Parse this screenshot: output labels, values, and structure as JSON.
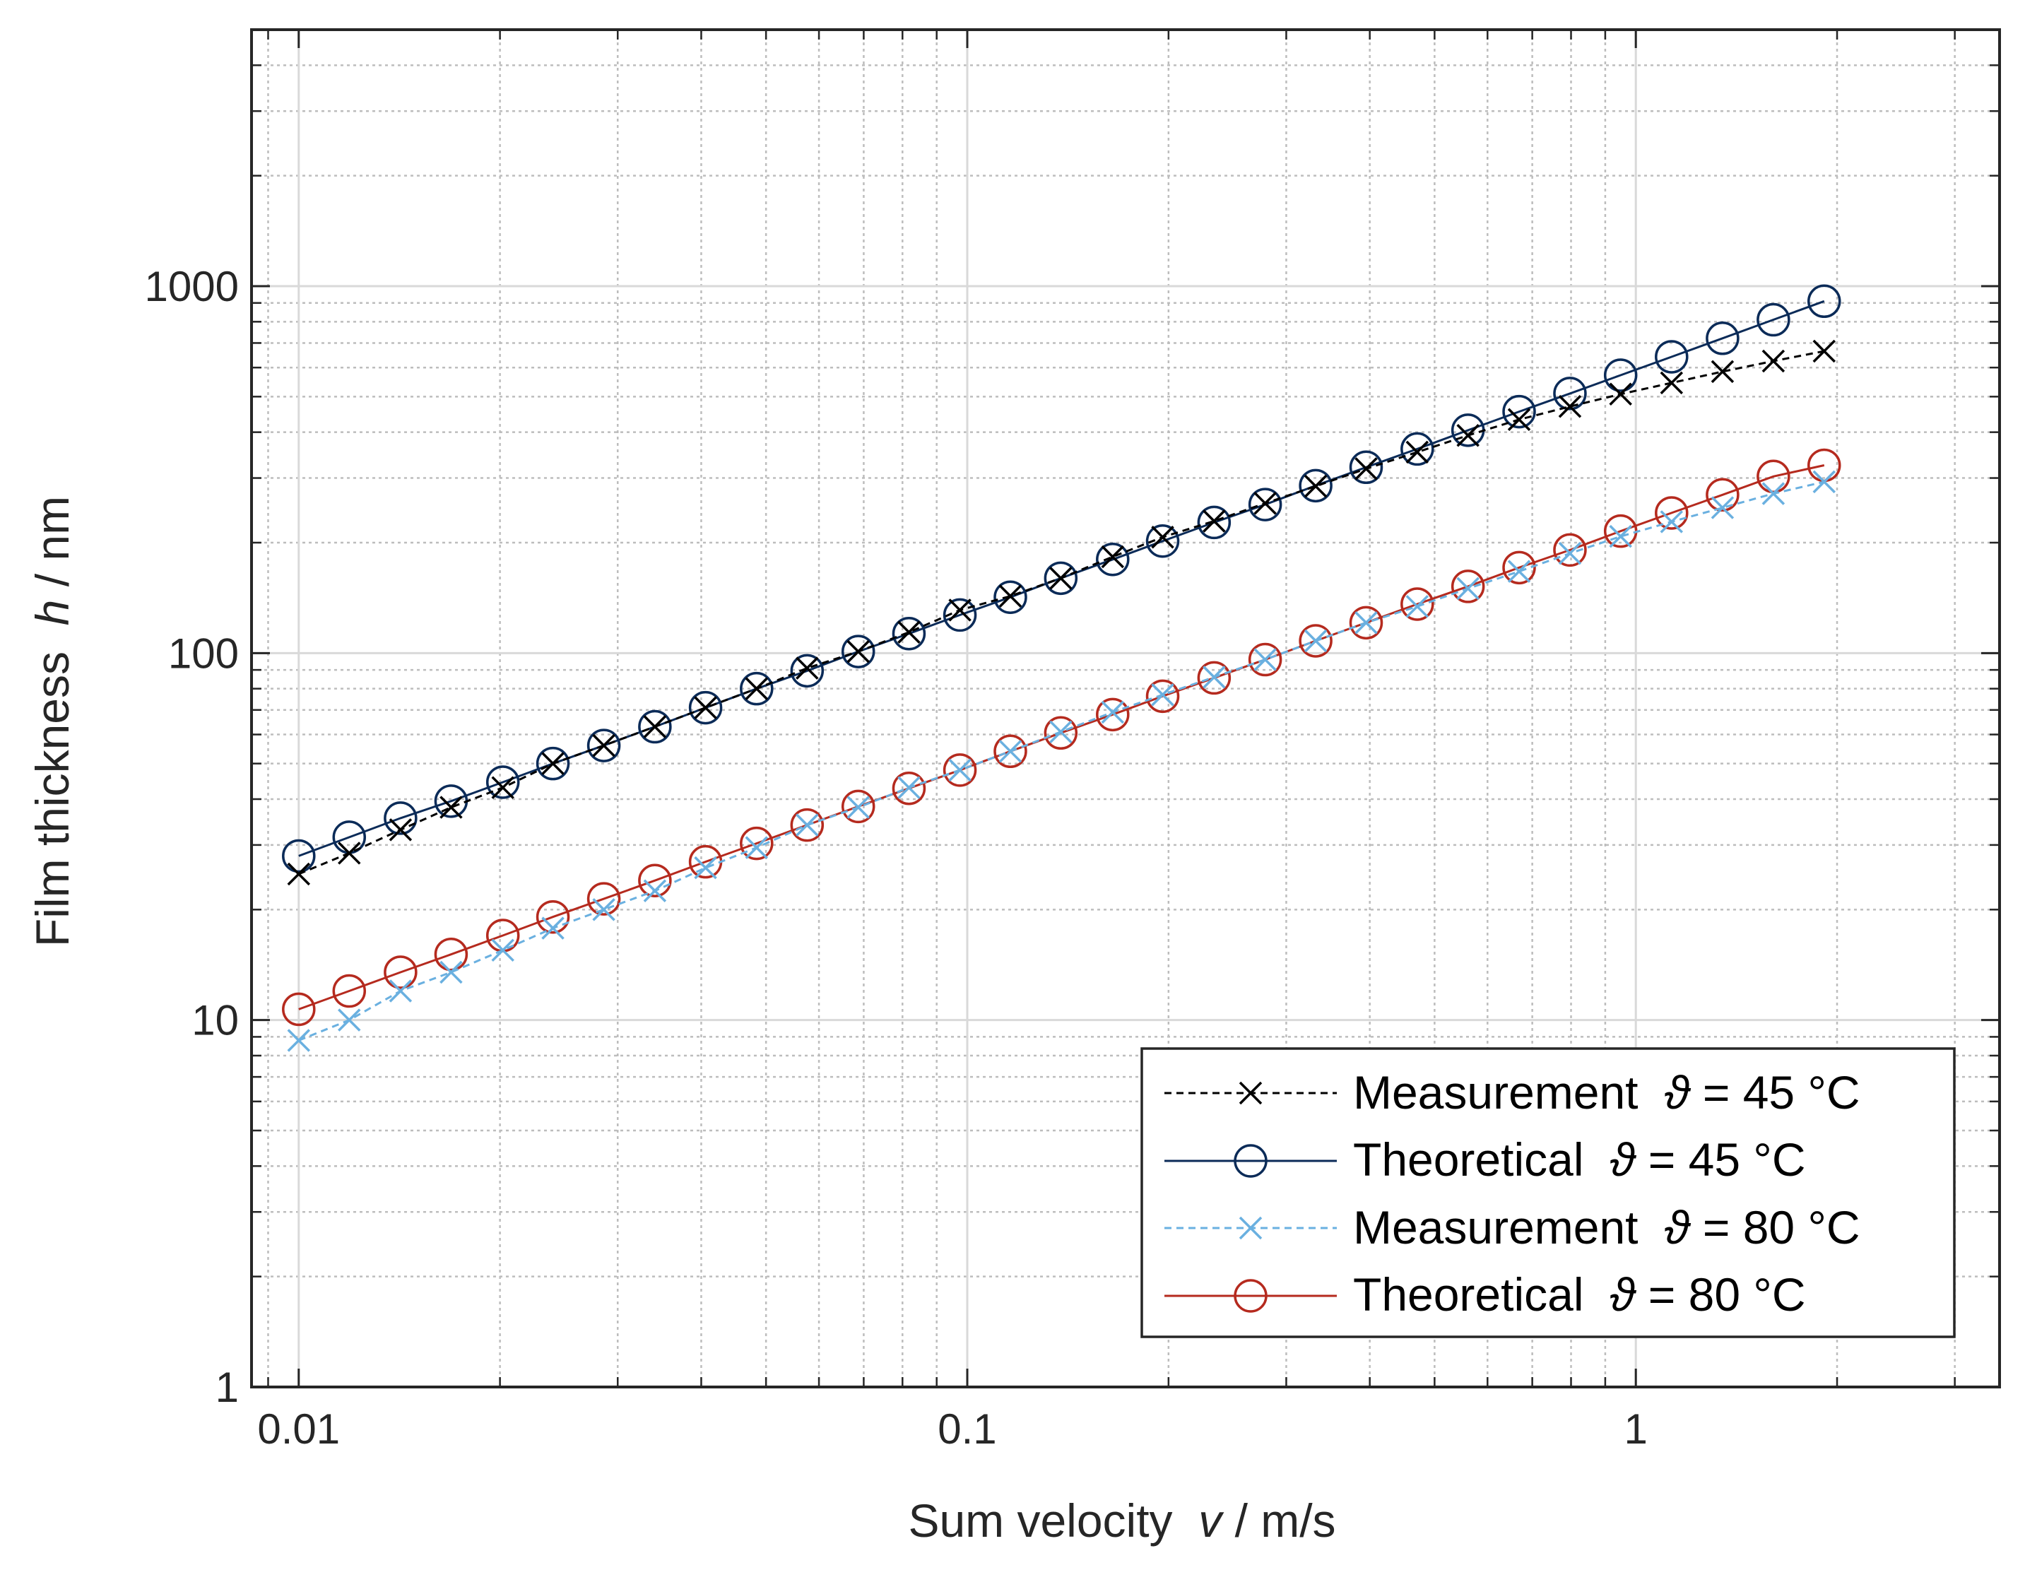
{
  "chart_data": {
    "type": "line",
    "xscale": "log",
    "yscale": "log",
    "xlim": [
      0.0085,
      3.5
    ],
    "ylim": [
      1,
      5000
    ],
    "xticks": [
      0.01,
      0.1,
      1
    ],
    "xtick_labels": [
      "0.01",
      "0.1",
      "1"
    ],
    "yticks": [
      1,
      10,
      100,
      1000
    ],
    "ytick_labels": [
      "1",
      "10",
      "100",
      "1000"
    ],
    "xlabel": "Sum velocity  v / m/s",
    "xlabel_parts": {
      "prefix": "Sum velocity  ",
      "var": "v",
      "suffix": " / m/s"
    },
    "ylabel": "Film thickness  h / nm",
    "ylabel_parts": {
      "prefix": "Film thickness  ",
      "var": "h",
      "suffix": " / nm"
    },
    "grid": true,
    "legend_position": "bottom-right",
    "x": [
      0.01,
      0.0119,
      0.0142,
      0.0169,
      0.0202,
      0.024,
      0.0286,
      0.0341,
      0.0406,
      0.0484,
      0.0576,
      0.0687,
      0.0818,
      0.0975,
      0.116,
      0.138,
      0.165,
      0.196,
      0.234,
      0.279,
      0.332,
      0.395,
      0.471,
      0.561,
      0.669,
      0.797,
      0.949,
      1.131,
      1.348,
      1.606,
      1.913
    ],
    "series": [
      {
        "name": "Measurement  ϑ = 45 °C",
        "label_parts": {
          "prefix": "Measurement  ",
          "var": "ϑ",
          "suffix": " = 45 °C"
        },
        "color": "#000000",
        "line": "dashed",
        "marker": "x",
        "values": [
          25,
          28.5,
          33,
          38,
          43,
          50,
          56,
          63,
          71,
          80,
          91,
          101,
          114,
          131,
          143,
          160,
          183,
          207,
          229,
          256,
          285,
          318,
          353,
          392,
          433,
          470,
          508,
          545,
          585,
          625,
          665
        ]
      },
      {
        "name": "Theoretical  ϑ = 45 °C",
        "label_parts": {
          "prefix": "Theoretical  ",
          "var": "ϑ",
          "suffix": " = 45 °C"
        },
        "color": "#0b2b58",
        "line": "solid",
        "marker": "o",
        "values": [
          28,
          31.5,
          35.5,
          39.5,
          44.5,
          50,
          56,
          63,
          71,
          80,
          89.5,
          101,
          113,
          127,
          142,
          160,
          180,
          202,
          227,
          254,
          286,
          321,
          360,
          405,
          455,
          510,
          572,
          642,
          721,
          810,
          910
        ]
      },
      {
        "name": "Measurement  ϑ = 80 °C",
        "label_parts": {
          "prefix": "Measurement  ",
          "var": "ϑ",
          "suffix": " = 80 °C"
        },
        "color": "#6ab0e0",
        "line": "dashed",
        "marker": "x",
        "values": [
          8.8,
          10,
          12,
          13.5,
          15.5,
          17.8,
          20,
          22.5,
          26,
          29.5,
          34,
          38,
          43,
          48,
          54,
          61,
          69,
          77,
          86,
          96,
          108,
          121,
          134,
          150,
          167,
          187,
          208,
          228,
          249,
          272,
          293
        ]
      },
      {
        "name": "Theoretical  ϑ = 80 °C",
        "label_parts": {
          "prefix": "Theoretical  ",
          "var": "ϑ",
          "suffix": " = 80 °C"
        },
        "color": "#b52a1e",
        "line": "solid",
        "marker": "o",
        "values": [
          10.7,
          12,
          13.5,
          15.1,
          17,
          19.1,
          21.4,
          24,
          27,
          30.3,
          34,
          38.2,
          42.8,
          48,
          54,
          60.6,
          68,
          76.3,
          85.6,
          96,
          108,
          121,
          136,
          152,
          171,
          191,
          215,
          241,
          270,
          303,
          325
        ]
      }
    ]
  }
}
